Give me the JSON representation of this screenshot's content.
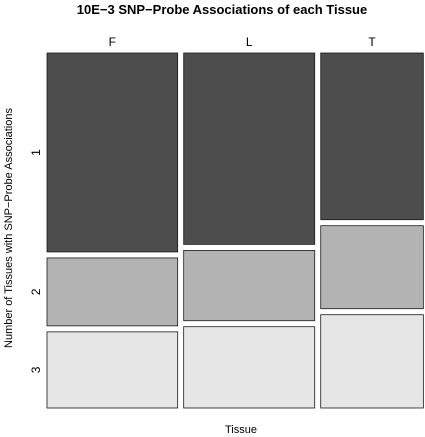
{
  "chart_data": {
    "type": "mosaic",
    "title": "10E−3 SNP−Probe Associations of each Tissue",
    "xlabel": "Tissue",
    "ylabel": "Number of Tissues with SNP−Probe Associations",
    "categories": [
      "F",
      "L",
      "T"
    ],
    "levels": [
      "1",
      "2",
      "3"
    ],
    "column_widths": [
      0.359,
      0.36,
      0.282
    ],
    "series": [
      {
        "name": "1",
        "color": "#4d4d4d",
        "values": [
          0.58,
          0.558,
          0.486
        ]
      },
      {
        "name": "2",
        "color": "#b3b3b3",
        "values": [
          0.198,
          0.205,
          0.242
        ]
      },
      {
        "name": "3",
        "color": "#e6e6e6",
        "values": [
          0.222,
          0.237,
          0.272
        ]
      }
    ]
  }
}
